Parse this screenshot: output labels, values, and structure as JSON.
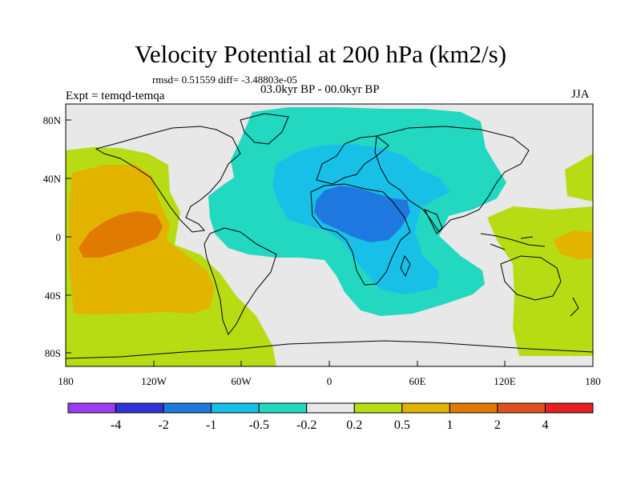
{
  "header": {
    "title": "Velocity Potential at 200 hPa (km2/s)",
    "stats": "rmsd= 0.51559 diff= -3.48803e-05",
    "experiment": "Expt = temqd-temqa",
    "period": "03.0kyr BP - 00.0kyr BP",
    "season": "JJA"
  },
  "axes": {
    "x_ticks": [
      "180",
      "120W",
      "60W",
      "0",
      "60E",
      "120E",
      "180"
    ],
    "y_ticks": [
      "80N",
      "40N",
      "0",
      "40S",
      "80S"
    ]
  },
  "colorbar": {
    "colors": [
      "#9a3cf0",
      "#3232d8",
      "#1e78e0",
      "#18c0e8",
      "#22d8c0",
      "#e8e8e8",
      "#b8dc14",
      "#e2b400",
      "#e07a00",
      "#e0501e",
      "#e82020"
    ],
    "labels": [
      "-4",
      "-2",
      "-1",
      "-0.5",
      "-0.2",
      "0.2",
      "0.5",
      "1",
      "2",
      "4"
    ]
  },
  "colors": {
    "land_outline": "#000000",
    "neutral": "#e8e8e8"
  }
}
